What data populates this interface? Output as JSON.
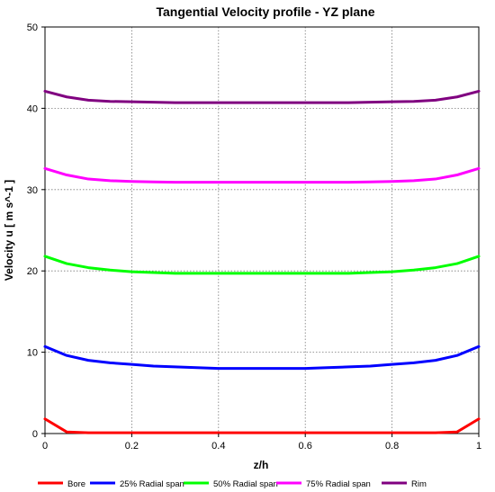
{
  "chart_data": {
    "type": "line",
    "title": "Tangential Velocity profile - YZ plane",
    "xlabel": "z/h",
    "ylabel": "Velocity u [ m s^-1 ]",
    "xlim": [
      0,
      1
    ],
    "ylim": [
      0,
      50
    ],
    "xticks": [
      "0",
      "0.2",
      "0.4",
      "0.6",
      "0.8",
      "1"
    ],
    "yticks": [
      "0",
      "10",
      "20",
      "30",
      "40",
      "50"
    ],
    "grid": true,
    "legend_position": "bottom",
    "x": [
      0,
      0.05,
      0.1,
      0.15,
      0.2,
      0.25,
      0.3,
      0.35,
      0.4,
      0.45,
      0.5,
      0.55,
      0.6,
      0.65,
      0.7,
      0.75,
      0.8,
      0.85,
      0.9,
      0.95,
      1
    ],
    "series": [
      {
        "name": "Bore",
        "color": "#ff0000",
        "values": [
          1.8,
          0.2,
          0.1,
          0.1,
          0.1,
          0.1,
          0.1,
          0.1,
          0.1,
          0.1,
          0.1,
          0.1,
          0.1,
          0.1,
          0.1,
          0.1,
          0.1,
          0.1,
          0.1,
          0.2,
          1.8
        ]
      },
      {
        "name": "25% Radial span",
        "color": "#0000ff",
        "values": [
          10.7,
          9.6,
          9.0,
          8.7,
          8.5,
          8.3,
          8.2,
          8.1,
          8.0,
          8.0,
          8.0,
          8.0,
          8.0,
          8.1,
          8.2,
          8.3,
          8.5,
          8.7,
          9.0,
          9.6,
          10.7
        ]
      },
      {
        "name": "50% Radial span",
        "color": "#00ff00",
        "values": [
          21.8,
          20.9,
          20.4,
          20.1,
          19.9,
          19.8,
          19.7,
          19.7,
          19.7,
          19.7,
          19.7,
          19.7,
          19.7,
          19.7,
          19.7,
          19.8,
          19.9,
          20.1,
          20.4,
          20.9,
          21.8
        ]
      },
      {
        "name": "75% Radial span",
        "color": "#ff00ff",
        "values": [
          32.6,
          31.8,
          31.3,
          31.1,
          31.0,
          30.95,
          30.9,
          30.9,
          30.9,
          30.9,
          30.9,
          30.9,
          30.9,
          30.9,
          30.9,
          30.95,
          31.0,
          31.1,
          31.3,
          31.8,
          32.6
        ]
      },
      {
        "name": "Rim",
        "color": "#800080",
        "values": [
          42.1,
          41.4,
          41.0,
          40.85,
          40.8,
          40.75,
          40.7,
          40.7,
          40.7,
          40.7,
          40.7,
          40.7,
          40.7,
          40.7,
          40.7,
          40.75,
          40.8,
          40.85,
          41.0,
          41.4,
          42.1
        ]
      }
    ]
  }
}
